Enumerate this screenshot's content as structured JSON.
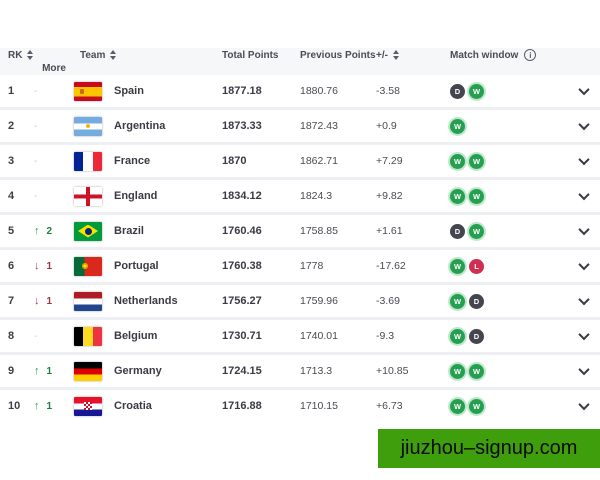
{
  "header": {
    "rk": "RK",
    "team": "Team",
    "total": "Total Points",
    "previous": "Previous Points",
    "diff": "+/-",
    "match": "Match window",
    "more": "More"
  },
  "rows": [
    {
      "rank": "1",
      "change": {
        "dir": "none",
        "amount": ""
      },
      "flag": "spain",
      "team": "Spain",
      "total": "1877.18",
      "previous": "1880.76",
      "diff": "-3.58",
      "match_window": [
        "D",
        "W"
      ]
    },
    {
      "rank": "2",
      "change": {
        "dir": "none",
        "amount": ""
      },
      "flag": "argentina",
      "team": "Argentina",
      "total": "1873.33",
      "previous": "1872.43",
      "diff": "+0.9",
      "match_window": [
        "W"
      ]
    },
    {
      "rank": "3",
      "change": {
        "dir": "none",
        "amount": ""
      },
      "flag": "france",
      "team": "France",
      "total": "1870",
      "previous": "1862.71",
      "diff": "+7.29",
      "match_window": [
        "W",
        "W"
      ]
    },
    {
      "rank": "4",
      "change": {
        "dir": "none",
        "amount": ""
      },
      "flag": "england",
      "team": "England",
      "total": "1834.12",
      "previous": "1824.3",
      "diff": "+9.82",
      "match_window": [
        "W",
        "W"
      ]
    },
    {
      "rank": "5",
      "change": {
        "dir": "up",
        "amount": "2"
      },
      "flag": "brazil",
      "team": "Brazil",
      "total": "1760.46",
      "previous": "1758.85",
      "diff": "+1.61",
      "match_window": [
        "D",
        "W"
      ]
    },
    {
      "rank": "6",
      "change": {
        "dir": "down",
        "amount": "1"
      },
      "flag": "portugal",
      "team": "Portugal",
      "total": "1760.38",
      "previous": "1778",
      "diff": "-17.62",
      "match_window": [
        "W",
        "L"
      ]
    },
    {
      "rank": "7",
      "change": {
        "dir": "down",
        "amount": "1"
      },
      "flag": "netherlands",
      "team": "Netherlands",
      "total": "1756.27",
      "previous": "1759.96",
      "diff": "-3.69",
      "match_window": [
        "W",
        "D"
      ]
    },
    {
      "rank": "8",
      "change": {
        "dir": "none",
        "amount": ""
      },
      "flag": "belgium",
      "team": "Belgium",
      "total": "1730.71",
      "previous": "1740.01",
      "diff": "-9.3",
      "match_window": [
        "W",
        "D"
      ]
    },
    {
      "rank": "9",
      "change": {
        "dir": "up",
        "amount": "1"
      },
      "flag": "germany",
      "team": "Germany",
      "total": "1724.15",
      "previous": "1713.3",
      "diff": "+10.85",
      "match_window": [
        "W",
        "W"
      ]
    },
    {
      "rank": "10",
      "change": {
        "dir": "up",
        "amount": "1"
      },
      "flag": "croatia",
      "team": "Croatia",
      "total": "1716.88",
      "previous": "1710.15",
      "diff": "+6.73",
      "match_window": [
        "W",
        "W"
      ]
    }
  ],
  "badge_colors": {
    "win": "#26a050",
    "draw": "#45454f",
    "loss": "#d02e52"
  },
  "rank_change_colors": {
    "up": "#2e9e53",
    "down": "#a63c47"
  },
  "banner": {
    "text": "jiuzhou–signup.com",
    "bg": "#3f9e0c"
  }
}
